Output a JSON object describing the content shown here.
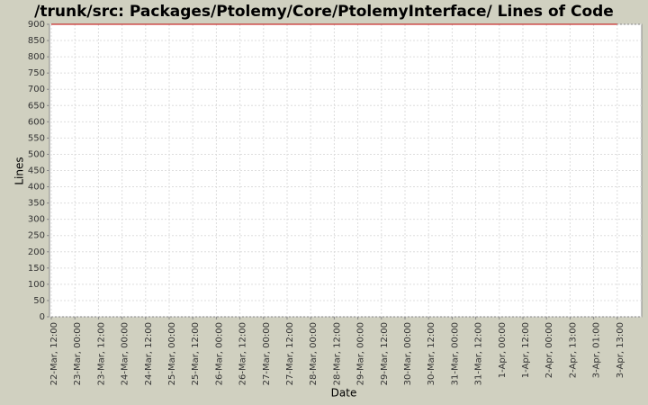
{
  "chart_data": {
    "type": "line",
    "title": "/trunk/src: Packages/Ptolemy/Core/PtolemyInterface/ Lines of Code",
    "x_label": "Date",
    "y_label": "Lines",
    "categories": [
      "22-Mar, 12:00",
      "23-Mar, 00:00",
      "23-Mar, 12:00",
      "24-Mar, 00:00",
      "24-Mar, 12:00",
      "25-Mar, 00:00",
      "25-Mar, 12:00",
      "26-Mar, 00:00",
      "26-Mar, 12:00",
      "27-Mar, 00:00",
      "27-Mar, 12:00",
      "28-Mar, 00:00",
      "28-Mar, 12:00",
      "29-Mar, 00:00",
      "29-Mar, 12:00",
      "30-Mar, 00:00",
      "30-Mar, 12:00",
      "31-Mar, 00:00",
      "31-Mar, 12:00",
      "1-Apr, 00:00",
      "1-Apr, 12:00",
      "2-Apr, 00:00",
      "2-Apr, 13:00",
      "3-Apr, 01:00",
      "3-Apr, 13:00"
    ],
    "values": [
      900,
      900,
      900,
      900,
      900,
      900,
      900,
      900,
      900,
      900,
      900,
      900,
      900,
      900,
      900,
      900,
      900,
      900,
      900,
      900,
      900,
      900,
      900,
      900,
      900
    ],
    "color": "#c00000",
    "ylim": [
      0,
      900
    ],
    "yticks": [
      0,
      50,
      100,
      150,
      200,
      250,
      300,
      350,
      400,
      450,
      500,
      550,
      600,
      650,
      700,
      750,
      800,
      850,
      900
    ],
    "grid": true
  }
}
